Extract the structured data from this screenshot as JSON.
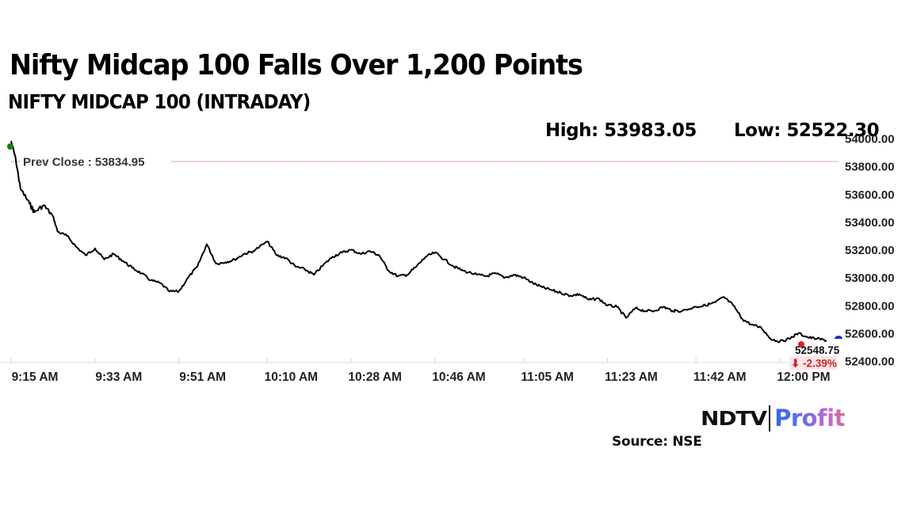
{
  "header": {
    "headline": "Nifty Midcap 100 Falls Over 1,200 Points",
    "subtitle": "NIFTY MIDCAP 100 (INTRADAY)",
    "high_label": "High: 53983.05",
    "low_label": "Low: 52522.30"
  },
  "annotations": {
    "prev_close_label": "Prev Close : 53834.95",
    "last_value_label": "52548.75",
    "change_label": "⬇ -2.39%",
    "change_arrow_icon": "down-arrow-icon"
  },
  "footer": {
    "logo_left": "NDTV",
    "logo_right": "Profit",
    "source": "Source: NSE"
  },
  "colors": {
    "line": "#000000",
    "prev_close_line": "#b05050",
    "start_marker": "#1a7a1a",
    "last_marker": "#e02020",
    "end_marker": "#1a2fb0",
    "change_text": "#c62828",
    "change_bg": "#fde4ea",
    "axis": "#d8d8d8"
  },
  "chart_data": {
    "type": "line",
    "title": "NIFTY MIDCAP 100 (INTRADAY)",
    "xlabel": "",
    "ylabel": "",
    "ylim": [
      52400,
      54000
    ],
    "grid": false,
    "legend": null,
    "y_ticks": [
      "54000.00",
      "53800.00",
      "53600.00",
      "53400.00",
      "53200.00",
      "53000.00",
      "52800.00",
      "52600.00",
      "52400.00"
    ],
    "x_ticks": [
      "9:15 AM",
      "9:33 AM",
      "9:51 AM",
      "10:10 AM",
      "10:28 AM",
      "10:46 AM",
      "11:05 AM",
      "11:23 AM",
      "11:42 AM",
      "12:00 PM"
    ],
    "prev_close": 53834.95,
    "high": 53983.05,
    "low": 52522.3,
    "last": 52548.75,
    "change_pct": -2.39,
    "x": [
      "9:15",
      "9:16",
      "9:17",
      "9:19",
      "9:20",
      "9:22",
      "9:24",
      "9:25",
      "9:27",
      "9:29",
      "9:31",
      "9:33",
      "9:35",
      "9:37",
      "9:39",
      "9:41",
      "9:43",
      "9:45",
      "9:47",
      "9:49",
      "9:51",
      "9:53",
      "9:55",
      "9:57",
      "9:59",
      "10:01",
      "10:03",
      "10:05",
      "10:07",
      "10:10",
      "10:12",
      "10:14",
      "10:16",
      "10:18",
      "10:20",
      "10:22",
      "10:24",
      "10:26",
      "10:28",
      "10:30",
      "10:32",
      "10:34",
      "10:36",
      "10:38",
      "10:40",
      "10:42",
      "10:44",
      "10:46",
      "10:48",
      "10:50",
      "10:52",
      "10:55",
      "10:57",
      "10:59",
      "11:01",
      "11:03",
      "11:05",
      "11:07",
      "11:09",
      "11:11",
      "11:13",
      "11:15",
      "11:17",
      "11:19",
      "11:21",
      "11:23",
      "11:25",
      "11:27",
      "11:29",
      "11:31",
      "11:33",
      "11:35",
      "11:37",
      "11:39",
      "11:42",
      "11:44",
      "11:46",
      "11:48",
      "11:50",
      "11:52",
      "11:54",
      "11:56",
      "11:58",
      "12:00",
      "12:02",
      "12:04",
      "12:06",
      "12:08",
      "12:10"
    ],
    "values": [
      53983,
      53850,
      53640,
      53530,
      53470,
      53520,
      53440,
      53330,
      53300,
      53220,
      53160,
      53210,
      53130,
      53170,
      53120,
      53070,
      53030,
      52980,
      52960,
      52900,
      52900,
      53000,
      53080,
      53240,
      53100,
      53110,
      53130,
      53170,
      53190,
      53260,
      53160,
      53140,
      53080,
      53060,
      53020,
      53090,
      53150,
      53180,
      53200,
      53170,
      53190,
      53160,
      53050,
      53010,
      53020,
      53080,
      53150,
      53180,
      53130,
      53080,
      53050,
      53020,
      53010,
      53030,
      53000,
      53020,
      53000,
      52960,
      52930,
      52910,
      52890,
      52870,
      52880,
      52840,
      52850,
      52800,
      52790,
      52710,
      52780,
      52760,
      52760,
      52790,
      52760,
      52760,
      52790,
      52800,
      52820,
      52860,
      52800,
      52700,
      52660,
      52640,
      52560,
      52540,
      52560,
      52600,
      52570,
      52560,
      52548
    ]
  }
}
